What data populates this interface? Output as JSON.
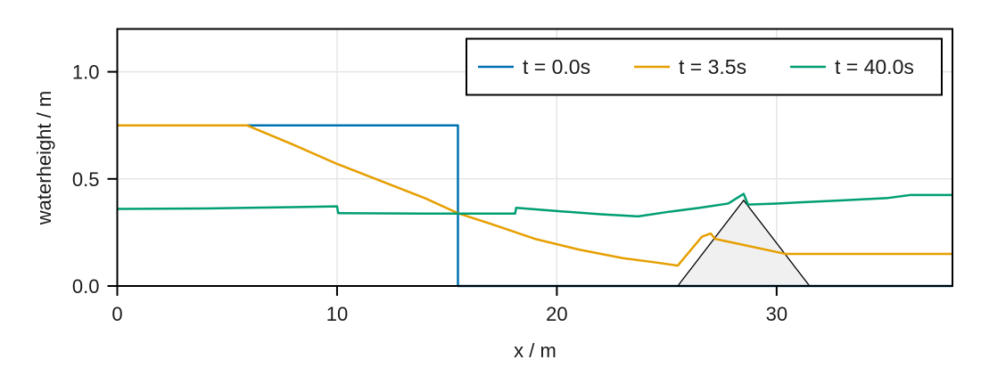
{
  "chart_data": {
    "type": "line",
    "title": "",
    "xlabel": "x / m",
    "ylabel": "waterheight / m",
    "xlim": [
      0,
      38
    ],
    "ylim": [
      0,
      1.2
    ],
    "xticks": [
      0,
      10,
      20,
      30
    ],
    "xtick_labels": [
      "0",
      "10",
      "20",
      "30"
    ],
    "yticks": [
      0.0,
      0.5,
      1.0
    ],
    "ytick_labels": [
      "0.0",
      "0.5",
      "1.0"
    ],
    "grid": true,
    "legend_position": "top-right",
    "series": [
      {
        "name": "t = 0.0s",
        "color": "#0072b2",
        "x": [
          0,
          15.5,
          15.5,
          38
        ],
        "y": [
          0.75,
          0.75,
          0.0,
          0.0
        ]
      },
      {
        "name": "t = 3.5s",
        "color": "#e69f00",
        "x": [
          0,
          5.9,
          8,
          10,
          12,
          14,
          15.5,
          17,
          19,
          21,
          23,
          24.5,
          25.5,
          26.6,
          27.0,
          27.2,
          30.4,
          38
        ],
        "y": [
          0.75,
          0.75,
          0.66,
          0.57,
          0.49,
          0.41,
          0.34,
          0.29,
          0.22,
          0.17,
          0.13,
          0.11,
          0.095,
          0.23,
          0.245,
          0.22,
          0.15,
          0.15
        ]
      },
      {
        "name": "t = 40.0s",
        "color": "#009e73",
        "x": [
          0,
          4,
          8,
          10,
          10.05,
          14,
          18.1,
          18.15,
          20,
          22,
          23.7,
          25,
          26.5,
          27.8,
          28.5,
          28.7,
          30,
          33,
          35,
          36.1,
          38
        ],
        "y": [
          0.36,
          0.362,
          0.368,
          0.372,
          0.34,
          0.338,
          0.338,
          0.365,
          0.35,
          0.335,
          0.325,
          0.345,
          0.365,
          0.385,
          0.43,
          0.38,
          0.385,
          0.4,
          0.41,
          0.425,
          0.425
        ]
      }
    ],
    "annotations": [
      {
        "type": "filled-polygon",
        "label": "obstacle",
        "fill": "#f0f0f0",
        "stroke": "#000000",
        "x": [
          25.5,
          28.5,
          31.5
        ],
        "y": [
          0.0,
          0.4,
          0.0
        ]
      }
    ]
  },
  "legend": {
    "items": [
      {
        "label": "t = 0.0s",
        "color": "#0072b2"
      },
      {
        "label": "t = 3.5s",
        "color": "#e69f00"
      },
      {
        "label": "t = 40.0s",
        "color": "#009e73"
      }
    ]
  },
  "axes": {
    "xlabel": "x / m",
    "ylabel": "waterheight / m",
    "xticks": [
      "0",
      "10",
      "20",
      "30"
    ],
    "yticks": [
      "0.0",
      "0.5",
      "1.0"
    ]
  }
}
